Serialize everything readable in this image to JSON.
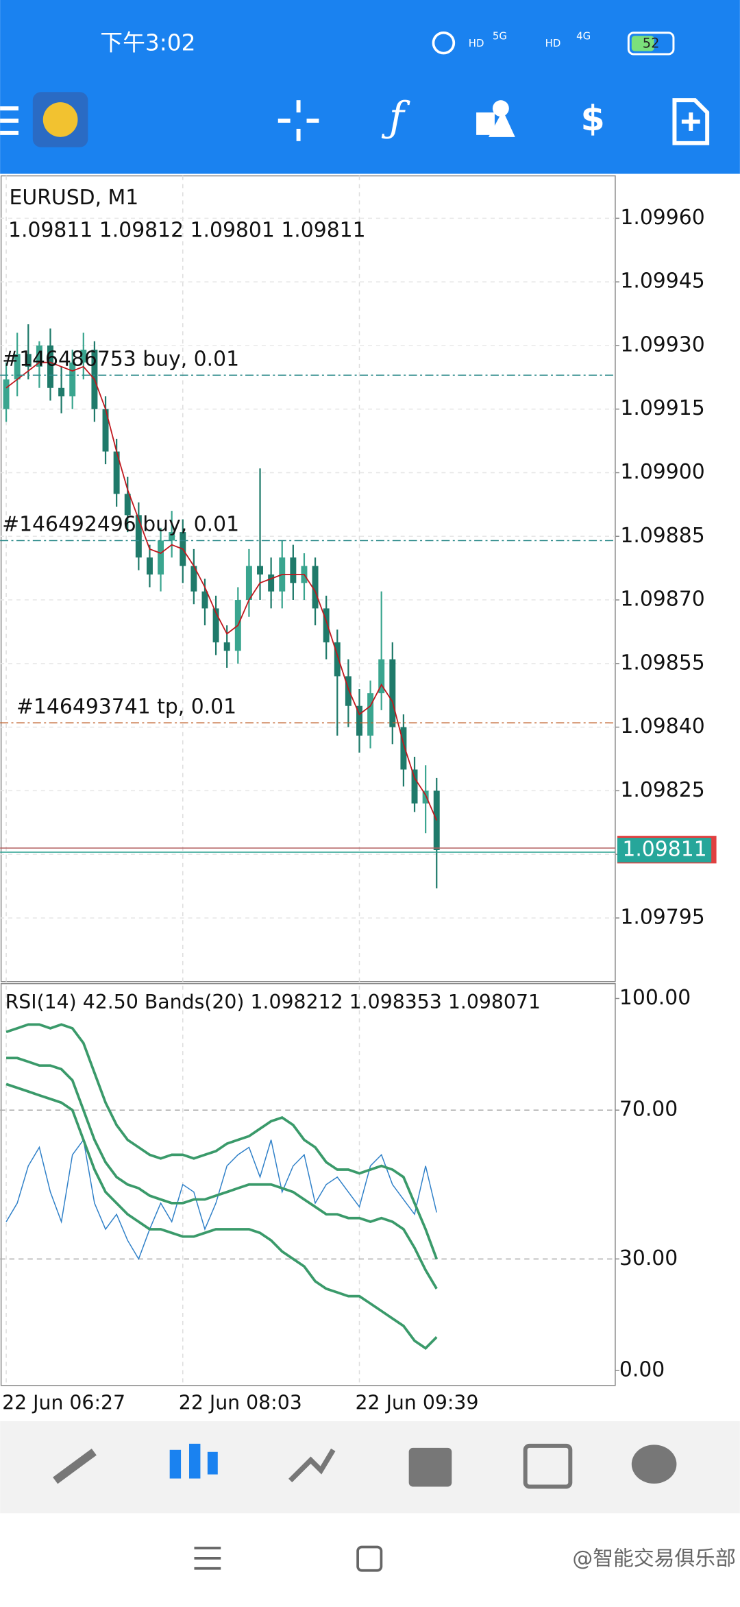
{
  "status_bar": {
    "time": "下午3:02",
    "hd1": "HD",
    "net1": "5G",
    "hd2": "HD",
    "net2": "4G",
    "battery": "52"
  },
  "chart_data": {
    "type": "candlestick",
    "title": "EURUSD, M1",
    "ohlc_label": "1.09811 1.09812 1.09801 1.09811",
    "up_color": "#3aa58f",
    "down_color": "#1f7a6a",
    "ma_color": "#c0161c",
    "ylim": [
      1.0978,
      1.0997
    ],
    "yticks": [
      {
        "value": 1.0996,
        "label": "1.09960"
      },
      {
        "value": 1.09945,
        "label": "1.09945"
      },
      {
        "value": 1.0993,
        "label": "1.09930"
      },
      {
        "value": 1.09915,
        "label": "1.09915"
      },
      {
        "value": 1.099,
        "label": "1.09900"
      },
      {
        "value": 1.09885,
        "label": "1.09885"
      },
      {
        "value": 1.0987,
        "label": "1.09870"
      },
      {
        "value": 1.09855,
        "label": "1.09855"
      },
      {
        "value": 1.0984,
        "label": "1.09840"
      },
      {
        "value": 1.09825,
        "label": "1.09825"
      },
      {
        "value": 1.0981,
        "label": "1.09810"
      },
      {
        "value": 1.09795,
        "label": "1.09795"
      }
    ],
    "categories": [
      "22 Jun 06:27",
      null,
      null,
      null,
      null,
      null,
      null,
      null,
      null,
      null,
      null,
      null,
      null,
      null,
      null,
      null,
      "22 Jun 08:03",
      null,
      null,
      null,
      null,
      null,
      null,
      null,
      null,
      null,
      null,
      null,
      null,
      null,
      null,
      null,
      "22 Jun 09:39",
      null,
      null,
      null,
      null,
      null,
      null,
      null
    ],
    "open": [
      1.09915,
      1.09922,
      1.09928,
      1.09925,
      1.0993,
      1.0992,
      1.09918,
      1.09926,
      1.09929,
      1.09915,
      1.09905,
      1.09895,
      1.0989,
      1.0988,
      1.09876,
      1.09884,
      1.09886,
      1.09878,
      1.09872,
      1.09868,
      1.0986,
      1.09858,
      1.0987,
      1.09878,
      1.09876,
      1.09872,
      1.0988,
      1.09874,
      1.09878,
      1.09868,
      1.0986,
      1.09852,
      1.09845,
      1.09838,
      1.09848,
      1.09856,
      1.0984,
      1.0983,
      1.09822,
      1.09825
    ],
    "high": [
      1.09926,
      1.09933,
      1.09935,
      1.09931,
      1.09934,
      1.09925,
      1.09929,
      1.09933,
      1.09931,
      1.09918,
      1.09908,
      1.09899,
      1.09893,
      1.09883,
      1.09887,
      1.09891,
      1.09889,
      1.09882,
      1.09875,
      1.09871,
      1.09864,
      1.09873,
      1.09882,
      1.09901,
      1.0988,
      1.09884,
      1.09883,
      1.09881,
      1.0988,
      1.09871,
      1.09863,
      1.09856,
      1.09849,
      1.09851,
      1.09872,
      1.0986,
      1.09843,
      1.09833,
      1.09831,
      1.09828
    ],
    "low": [
      1.09912,
      1.09918,
      1.09922,
      1.0992,
      1.09917,
      1.09914,
      1.09915,
      1.09922,
      1.09912,
      1.09902,
      1.09892,
      1.09886,
      1.09877,
      1.09873,
      1.09872,
      1.0988,
      1.09874,
      1.09869,
      1.09864,
      1.09857,
      1.09854,
      1.09855,
      1.09866,
      1.0987,
      1.09868,
      1.09868,
      1.0987,
      1.0987,
      1.09864,
      1.09856,
      1.09838,
      1.0984,
      1.09834,
      1.09835,
      1.09844,
      1.09836,
      1.09826,
      1.0982,
      1.09815,
      1.09802
    ],
    "close": [
      1.09922,
      1.09928,
      1.09925,
      1.0993,
      1.0992,
      1.09918,
      1.09926,
      1.09929,
      1.09915,
      1.09905,
      1.09895,
      1.0989,
      1.0988,
      1.09876,
      1.09884,
      1.09886,
      1.09878,
      1.09872,
      1.09868,
      1.0986,
      1.09858,
      1.0987,
      1.09878,
      1.09876,
      1.09872,
      1.0988,
      1.09874,
      1.09878,
      1.09868,
      1.0986,
      1.09852,
      1.09845,
      1.09838,
      1.09848,
      1.09856,
      1.0984,
      1.0983,
      1.09822,
      1.09825,
      1.09811
    ],
    "ma": [
      1.0992,
      1.09922,
      1.09924,
      1.09926,
      1.09926,
      1.09925,
      1.09924,
      1.09925,
      1.09922,
      1.09915,
      1.09905,
      1.09896,
      1.09889,
      1.09882,
      1.09881,
      1.09883,
      1.09882,
      1.09878,
      1.09873,
      1.09867,
      1.09862,
      1.09864,
      1.0987,
      1.09874,
      1.09875,
      1.09876,
      1.09876,
      1.09876,
      1.09872,
      1.09865,
      1.09857,
      1.09849,
      1.09843,
      1.09845,
      1.0985,
      1.09846,
      1.09836,
      1.09828,
      1.09824,
      1.09818
    ],
    "orders": [
      {
        "label": "#146486753 buy, 0.01",
        "price": 1.09923,
        "color": "#2e8b8b"
      },
      {
        "label": "#146492496 buy, 0.01",
        "price": 1.09884,
        "color": "#2e8b8b"
      },
      {
        "label": "#146493741 tp, 0.01",
        "price": 1.09841,
        "color": "#c0602a"
      }
    ],
    "current_price": 1.09811,
    "indicator": {
      "label": "RSI(14) 42.50 Bands(20) 1.098212 1.098353 1.098071",
      "ylim": [
        -4,
        104
      ],
      "yticks": [
        {
          "value": 100,
          "label": "100.00"
        },
        {
          "value": 70,
          "label": "70.00"
        },
        {
          "value": 30,
          "label": "30.00"
        },
        {
          "value": 0,
          "label": "0.00"
        }
      ],
      "grid_values": [
        70,
        30
      ],
      "series": [
        {
          "color": "#2f80c8",
          "width": 1,
          "values": [
            40,
            45,
            55,
            60,
            48,
            40,
            58,
            62,
            45,
            38,
            42,
            35,
            30,
            38,
            45,
            40,
            50,
            48,
            38,
            45,
            55,
            58,
            60,
            52,
            62,
            48,
            55,
            58,
            45,
            50,
            52,
            48,
            44,
            55,
            58,
            50,
            46,
            42,
            55,
            42.5
          ]
        },
        {
          "color": "#3a9a6a",
          "width": 2.5,
          "values": [
            91,
            92,
            93,
            93,
            92,
            93,
            92,
            88,
            80,
            72,
            66,
            62,
            60,
            58,
            57,
            58,
            58,
            57,
            58,
            59,
            61,
            62,
            63,
            65,
            67,
            68,
            66,
            62,
            60,
            56,
            54,
            54,
            53,
            54,
            55,
            54,
            52,
            45,
            38,
            30
          ]
        },
        {
          "color": "#3a9a6a",
          "width": 2.5,
          "values": [
            84,
            84,
            83,
            82,
            82,
            81,
            78,
            70,
            62,
            56,
            52,
            50,
            49,
            47,
            46,
            45,
            45,
            46,
            46,
            47,
            48,
            49,
            50,
            50,
            50,
            49,
            48,
            46,
            44,
            42,
            42,
            41,
            41,
            40,
            41,
            40,
            38,
            33,
            27,
            22
          ]
        },
        {
          "color": "#3a9a6a",
          "width": 2.5,
          "values": [
            77,
            76,
            75,
            74,
            73,
            72,
            70,
            62,
            54,
            48,
            45,
            42,
            40,
            38,
            38,
            37,
            36,
            36,
            37,
            38,
            38,
            38,
            38,
            37,
            35,
            32,
            30,
            28,
            24,
            22,
            21,
            20,
            20,
            18,
            16,
            14,
            12,
            8,
            6,
            9
          ]
        }
      ]
    }
  },
  "watermark": "@智能交易俱乐部"
}
